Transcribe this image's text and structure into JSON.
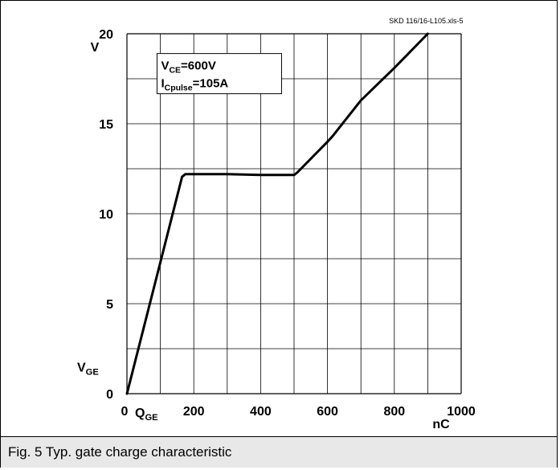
{
  "chart_data": {
    "type": "line",
    "source_ref": "SKD 116/16-L105.xls-5",
    "xlabel": "Q",
    "xlabel_sub": "GE",
    "xunit": "nC",
    "ylabel": "V",
    "ylabel_sub": "GE",
    "yunit": "V",
    "xlim": [
      0,
      1000
    ],
    "ylim": [
      0,
      20
    ],
    "x_ticks": [
      0,
      200,
      400,
      600,
      800,
      1000
    ],
    "y_ticks": [
      0,
      5,
      10,
      15,
      20
    ],
    "grid": true,
    "annotations": [
      {
        "base": "V",
        "sub": "CE",
        "rest": "=600V"
      },
      {
        "base": "I",
        "sub": "Cpulse",
        "rest": "=105A"
      }
    ],
    "series": [
      {
        "x": [
          0,
          100,
          165,
          175,
          300,
          400,
          500,
          510,
          600,
          615,
          700,
          800,
          900
        ],
        "y": [
          0,
          7.3,
          12.05,
          12.2,
          12.2,
          12.15,
          12.15,
          12.3,
          14.0,
          14.3,
          16.3,
          18.1,
          20.0
        ]
      }
    ],
    "colors": {
      "line": "#000000",
      "grid": "#000000",
      "caption_bg": "#e8e8e8"
    }
  },
  "caption": "Fig. 5 Typ. gate charge characteristic"
}
